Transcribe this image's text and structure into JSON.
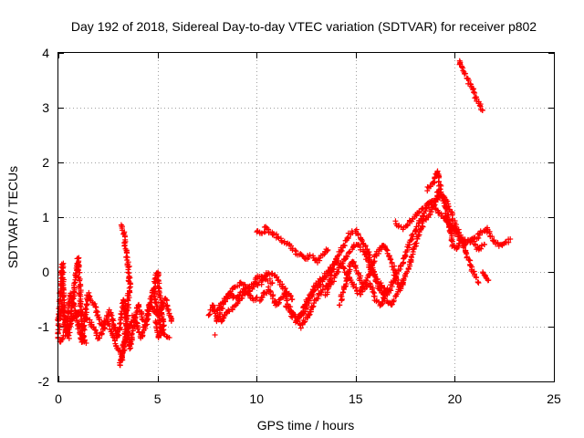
{
  "chart_data": {
    "type": "scatter",
    "title": "Day 192 of 2018, Sidereal Day-to-day VTEC variation (SDTVAR) for receiver p802",
    "xlabel": "GPS time / hours",
    "ylabel": "SDTVAR / TECUs",
    "xlim": [
      0,
      25
    ],
    "ylim": [
      -2,
      4
    ],
    "xticks": [
      0,
      5,
      10,
      15,
      20,
      25
    ],
    "yticks": [
      -2,
      -1,
      0,
      1,
      2,
      3,
      4
    ],
    "grid": true,
    "marker": "+",
    "color": "#ff0000",
    "series": [
      {
        "name": "SDTVAR",
        "segments": [
          {
            "x": [
              0.0,
              0.1,
              0.2,
              0.3,
              0.5,
              0.7,
              0.9,
              1.0,
              1.2,
              1.4
            ],
            "y": [
              -1.2,
              -0.4,
              0.15,
              -0.9,
              -1.2,
              -0.6,
              0.0,
              0.25,
              -1.1,
              -1.3
            ]
          },
          {
            "x": [
              0.0,
              0.2,
              0.4,
              0.6,
              0.9,
              1.2,
              1.5,
              1.8,
              2.2,
              2.6,
              3.0,
              3.3,
              3.6,
              4.0,
              4.4,
              4.8,
              5.2,
              5.6
            ],
            "y": [
              -0.9,
              -0.6,
              -1.1,
              -0.4,
              -0.8,
              -1.3,
              -0.4,
              -0.6,
              -1.0,
              -0.7,
              -1.2,
              -0.5,
              -1.4,
              -0.6,
              -1.0,
              -0.3,
              -1.1,
              -1.2
            ]
          },
          {
            "x": [
              0.1,
              0.5,
              1.0,
              1.6,
              2.0,
              2.5,
              2.9,
              3.2,
              3.5,
              3.8,
              4.2,
              4.6,
              5.0,
              5.4,
              5.7
            ],
            "y": [
              -1.3,
              -1.0,
              -0.7,
              -0.9,
              -1.2,
              -0.9,
              -1.3,
              -1.6,
              -1.1,
              -0.8,
              -1.2,
              -0.6,
              -0.8,
              -0.5,
              -0.9
            ]
          },
          {
            "x": [
              3.2,
              3.3,
              3.4,
              3.5,
              3.6,
              3.5,
              3.4,
              3.3,
              3.2,
              3.1
            ],
            "y": [
              0.85,
              0.7,
              0.4,
              0.2,
              -0.2,
              -0.6,
              -1.0,
              -1.3,
              -1.5,
              -1.7
            ]
          },
          {
            "x": [
              4.8,
              4.9,
              5.0,
              5.1,
              5.2,
              5.3,
              5.1,
              4.9
            ],
            "y": [
              -0.3,
              -0.1,
              0.0,
              -0.4,
              -0.7,
              -1.0,
              -1.2,
              -0.9
            ]
          },
          {
            "x": [
              7.6,
              7.8,
              8.0,
              8.3,
              8.6,
              9.0,
              9.4,
              9.8,
              10.2,
              10.6,
              11.0,
              11.4,
              11.8,
              12.2,
              12.6,
              13.0,
              13.4,
              13.8
            ],
            "y": [
              -0.8,
              -0.6,
              -0.9,
              -0.6,
              -0.4,
              -0.5,
              -0.3,
              -0.5,
              -0.5,
              -0.3,
              -0.6,
              -0.4,
              -0.8,
              -0.8,
              -0.5,
              -0.2,
              -0.1,
              0.0
            ]
          },
          {
            "x": [
              8.2,
              8.6,
              9.0,
              9.4,
              9.8,
              10.2,
              10.6,
              11.0,
              11.4,
              11.8
            ],
            "y": [
              -0.9,
              -0.7,
              -0.6,
              -0.4,
              -0.3,
              -0.2,
              0.0,
              -0.1,
              -0.3,
              -0.5
            ]
          },
          {
            "x": [
              8.0,
              8.4,
              8.8,
              9.2,
              9.6,
              10.0,
              10.4,
              10.8
            ],
            "y": [
              -0.7,
              -0.5,
              -0.3,
              -0.2,
              -0.3,
              -0.1,
              -0.1,
              -0.2
            ]
          },
          {
            "x": [
              7.9
            ],
            "y": [
              -1.15
            ]
          },
          {
            "x": [
              10.0,
              10.2,
              10.5,
              10.8,
              11.2,
              11.6,
              12.0,
              12.4,
              12.8,
              13.1,
              13.4,
              13.6
            ],
            "y": [
              0.75,
              0.7,
              0.8,
              0.7,
              0.6,
              0.5,
              0.35,
              0.25,
              0.3,
              0.2,
              0.3,
              0.4
            ]
          },
          {
            "x": [
              11.5,
              11.9,
              12.2,
              12.6,
              13.0,
              13.4,
              13.8,
              14.2,
              14.6,
              15.0,
              15.4,
              15.8,
              16.2,
              16.6,
              17.0,
              17.4,
              17.8,
              18.2,
              18.6,
              19.0,
              19.3
            ],
            "y": [
              -0.6,
              -0.8,
              -1.0,
              -0.8,
              -0.5,
              -0.3,
              -0.2,
              0.1,
              0.3,
              0.5,
              0.4,
              0.0,
              -0.2,
              -0.4,
              -0.1,
              0.2,
              0.6,
              0.9,
              1.2,
              1.3,
              1.4
            ]
          },
          {
            "x": [
              12.0,
              12.4,
              12.8,
              13.2,
              13.6,
              14.0,
              14.4,
              14.8,
              15.2,
              15.6,
              16.0,
              16.4,
              16.8,
              17.2,
              17.6,
              18.0,
              18.4,
              18.8,
              19.2
            ],
            "y": [
              -0.9,
              -0.7,
              -0.4,
              -0.2,
              0.0,
              0.2,
              0.1,
              -0.2,
              -0.4,
              -0.1,
              0.3,
              0.5,
              0.2,
              -0.3,
              0.0,
              0.5,
              0.9,
              1.1,
              1.5
            ]
          },
          {
            "x": [
              13.5,
              13.8,
              14.1,
              14.4,
              14.7,
              15.0,
              15.3,
              15.6,
              15.9,
              16.2,
              16.5,
              16.8,
              17.1,
              17.4
            ],
            "y": [
              -0.4,
              0.0,
              0.3,
              0.5,
              0.7,
              0.75,
              0.6,
              0.4,
              0.0,
              -0.3,
              -0.5,
              -0.6,
              -0.4,
              -0.2
            ]
          },
          {
            "x": [
              14.2,
              14.5,
              14.8,
              15.1,
              15.4,
              15.7,
              16.0,
              16.3,
              16.6
            ],
            "y": [
              -0.6,
              -0.2,
              0.2,
              0.0,
              -0.3,
              -0.2,
              -0.5,
              -0.6,
              -0.3
            ]
          },
          {
            "x": [
              17.0,
              17.3,
              17.6,
              17.9,
              18.2,
              18.5,
              18.8,
              19.1,
              19.4,
              19.7,
              20.0
            ],
            "y": [
              0.9,
              0.8,
              0.85,
              1.0,
              1.1,
              1.2,
              1.3,
              1.1,
              1.0,
              0.9,
              0.8
            ]
          },
          {
            "x": [
              18.6,
              18.9,
              19.1,
              19.3,
              19.5,
              19.7,
              19.9,
              20.1,
              20.3,
              20.6,
              20.9,
              21.2,
              21.5
            ],
            "y": [
              1.5,
              1.6,
              1.85,
              1.5,
              1.2,
              0.9,
              0.5,
              0.4,
              0.6,
              0.5,
              0.6,
              0.4,
              0.5
            ]
          },
          {
            "x": [
              19.5,
              19.8,
              20.1,
              20.4,
              20.7,
              21.0,
              21.3,
              21.6,
              21.9,
              22.2,
              22.5,
              22.8
            ],
            "y": [
              1.0,
              0.8,
              0.7,
              0.6,
              0.55,
              0.6,
              0.7,
              0.8,
              0.6,
              0.5,
              0.5,
              0.6
            ]
          },
          {
            "x": [
              19.4,
              19.7,
              20.0,
              20.3,
              20.6,
              20.9,
              21.2
            ],
            "y": [
              1.4,
              1.2,
              0.9,
              0.6,
              0.3,
              0.0,
              -0.2
            ]
          },
          {
            "x": [
              21.4,
              21.5,
              21.6,
              21.7
            ],
            "y": [
              0.0,
              -0.05,
              -0.1,
              -0.15
            ]
          },
          {
            "x": [
              20.2,
              20.4,
              20.6,
              20.8,
              21.0,
              21.2,
              21.4
            ],
            "y": [
              3.85,
              3.7,
              3.55,
              3.4,
              3.25,
              3.1,
              2.95
            ]
          }
        ]
      }
    ]
  }
}
